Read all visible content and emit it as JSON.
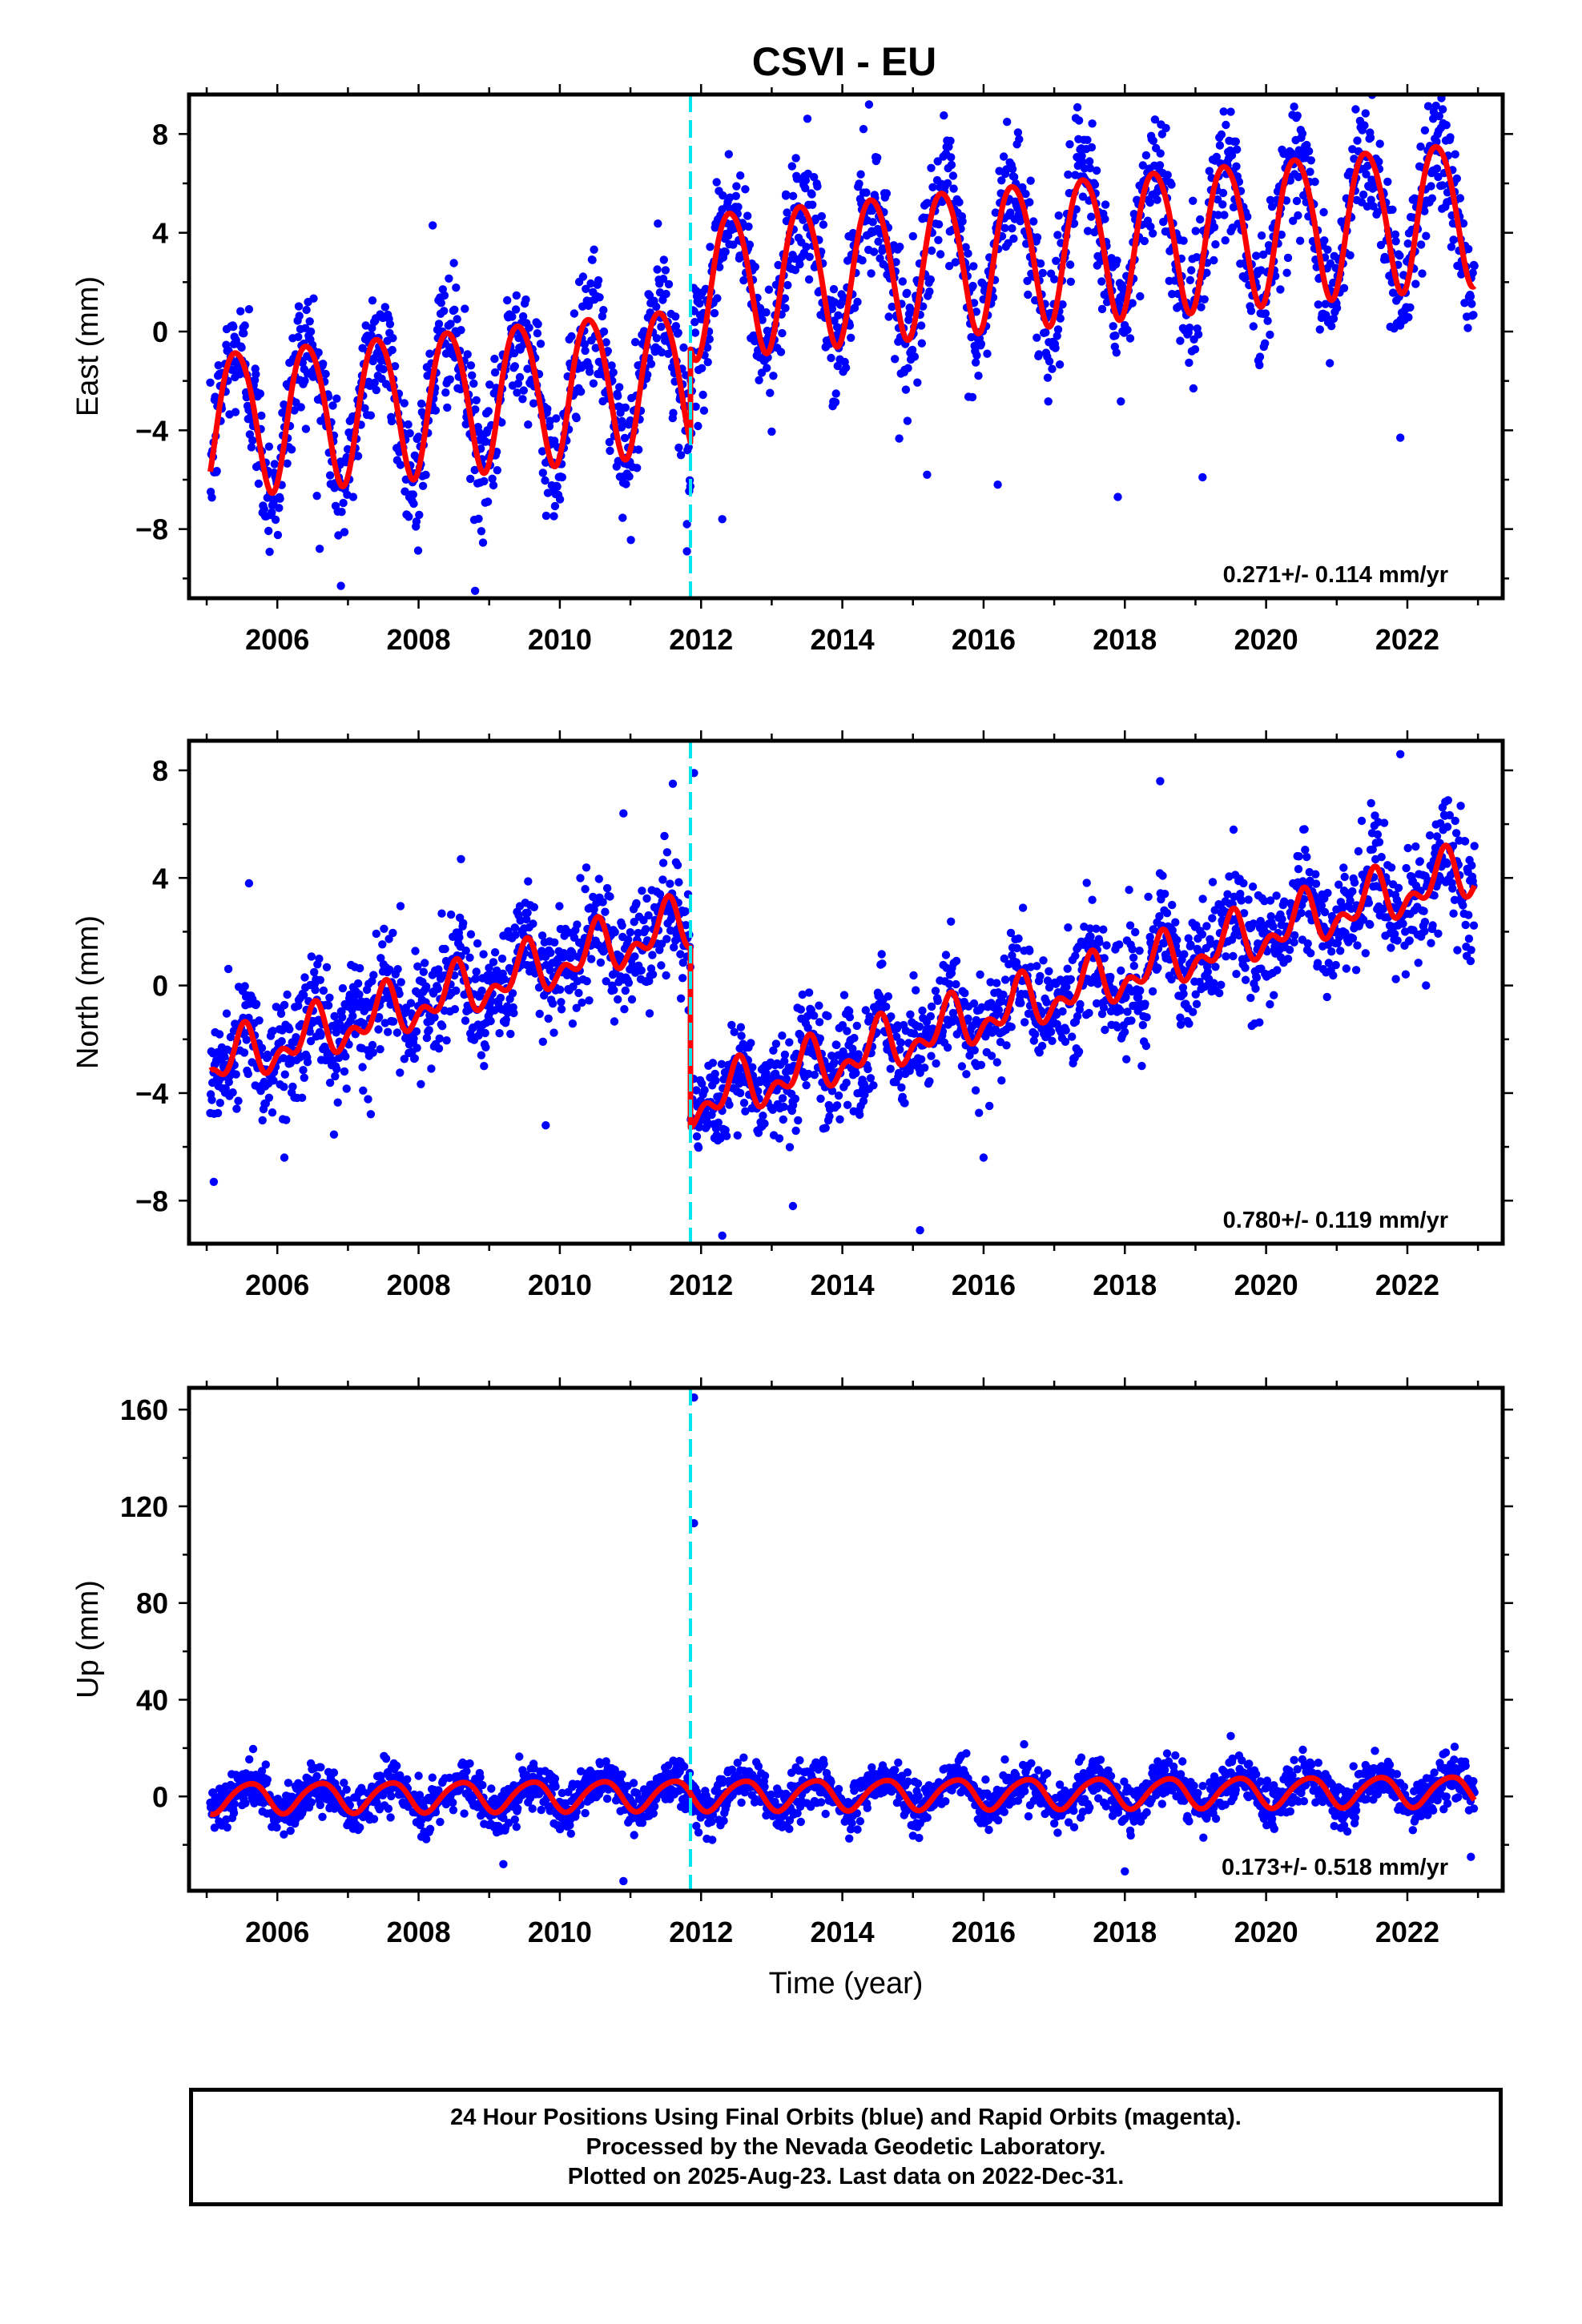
{
  "title": "CSVI - EU",
  "colors": {
    "points": "#0000ff",
    "model": "#ff0000",
    "event_line": "#00e5ee",
    "frame": "#000000"
  },
  "footer": {
    "line1": "24 Hour Positions Using Final Orbits (blue) and Rapid Orbits (magenta).",
    "line2": "Processed by the Nevada Geodetic Laboratory.",
    "line3": "Plotted on 2025-Aug-23. Last data on 2022-Dec-31."
  },
  "chart_data": [
    {
      "type": "scatter",
      "name": "east",
      "ylabel": "East (mm)",
      "xlabel": "",
      "xlim": [
        2004.75,
        2023.35
      ],
      "ylim": [
        -10.8,
        9.6
      ],
      "xticks": [
        2006,
        2008,
        2010,
        2012,
        2014,
        2016,
        2018,
        2020,
        2022
      ],
      "yticks": [
        -8,
        -4,
        0,
        4,
        8
      ],
      "rate_text": "0.271+/- 0.114 mm/yr",
      "event_line_x": 2011.85,
      "data_start": 2005.05,
      "data_end": 2022.95,
      "model": {
        "segments": [
          {
            "x0": 2005.05,
            "y0": -3.6,
            "rate": 0.27
          },
          {
            "x0": 2011.85,
            "y0": 2.0,
            "rate": 0.27
          }
        ],
        "annual_amplitude": 2.9,
        "annual_peak": 0.42,
        "semiannual_amplitude": 0.3,
        "semiannual_peak": 0.2
      },
      "noise_sd": 1.3,
      "outliers": [
        [
          2005.6,
          0.9
        ],
        [
          2006.6,
          -8.8
        ],
        [
          2006.9,
          -10.3
        ],
        [
          2008.2,
          4.3
        ],
        [
          2008.8,
          -10.5
        ],
        [
          2011.8,
          -8.9
        ],
        [
          2011.8,
          -7.8
        ],
        [
          2012.3,
          -7.6
        ],
        [
          2013.2,
          5.5
        ],
        [
          2014.3,
          8.2
        ],
        [
          2015.2,
          -5.8
        ],
        [
          2016.2,
          -6.2
        ],
        [
          2017.9,
          -6.7
        ],
        [
          2019.1,
          -5.9
        ],
        [
          2019.5,
          8.9
        ],
        [
          2021.9,
          -4.3
        ],
        [
          2022.5,
          9.0
        ]
      ]
    },
    {
      "type": "scatter",
      "name": "north",
      "ylabel": "North (mm)",
      "xlabel": "",
      "xlim": [
        2004.75,
        2023.35
      ],
      "ylim": [
        -9.6,
        9.1
      ],
      "xticks": [
        2006,
        2008,
        2010,
        2012,
        2014,
        2016,
        2018,
        2020,
        2022
      ],
      "yticks": [
        -8,
        -4,
        0,
        4,
        8
      ],
      "rate_text": "0.780+/- 0.119 mm/yr",
      "event_line_x": 2011.85,
      "data_start": 2005.05,
      "data_end": 2022.95,
      "model": {
        "segments": [
          {
            "x0": 2005.05,
            "y0": -3.0,
            "rate": 0.78
          },
          {
            "x0": 2011.85,
            "y0": -4.4,
            "rate": 0.78
          }
        ],
        "annual_amplitude": 0.75,
        "annual_peak": 0.5,
        "semiannual_amplitude": 0.55,
        "semiannual_peak": 0.05
      },
      "noise_sd": 1.05,
      "outliers": [
        [
          2005.1,
          -7.3
        ],
        [
          2005.6,
          3.8
        ],
        [
          2006.1,
          -6.4
        ],
        [
          2008.6,
          4.7
        ],
        [
          2009.8,
          -5.2
        ],
        [
          2010.9,
          6.4
        ],
        [
          2011.6,
          7.5
        ],
        [
          2011.9,
          7.9
        ],
        [
          2012.3,
          -9.3
        ],
        [
          2013.3,
          -8.2
        ],
        [
          2015.1,
          -9.1
        ],
        [
          2016.0,
          -6.4
        ],
        [
          2018.5,
          7.6
        ],
        [
          2021.9,
          8.6
        ]
      ]
    },
    {
      "type": "scatter",
      "name": "up",
      "ylabel": "Up (mm)",
      "xlabel": "Time (year)",
      "xlim": [
        2004.75,
        2023.35
      ],
      "ylim": [
        -39,
        169
      ],
      "xticks": [
        2006,
        2008,
        2010,
        2012,
        2014,
        2016,
        2018,
        2020,
        2022
      ],
      "yticks": [
        0,
        40,
        80,
        120,
        160
      ],
      "rate_text": "0.173+/- 0.518 mm/yr",
      "event_line_x": 2011.85,
      "data_start": 2005.05,
      "data_end": 2022.95,
      "model": {
        "segments": [
          {
            "x0": 2005.05,
            "y0": -0.5,
            "rate": 0.17
          },
          {
            "x0": 2011.85,
            "y0": 0.5,
            "rate": 0.17
          }
        ],
        "annual_amplitude": 6.2,
        "annual_peak": 0.6,
        "semiannual_amplitude": 0.8,
        "semiannual_peak": 0.3
      },
      "noise_sd": 4.8,
      "outliers": [
        [
          2011.9,
          165
        ],
        [
          2011.9,
          113
        ],
        [
          2009.2,
          -28
        ],
        [
          2010.9,
          -35
        ],
        [
          2018.0,
          -31
        ],
        [
          2019.5,
          25
        ],
        [
          2022.9,
          -25
        ]
      ]
    }
  ]
}
